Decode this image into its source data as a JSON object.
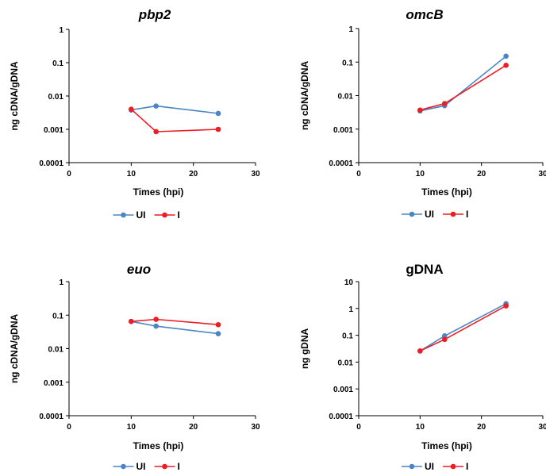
{
  "chart_data": [
    {
      "type": "line",
      "title": "pbp2",
      "title_italic": true,
      "xlabel": "Times (hpi)",
      "ylabel": "ng cDNA/gDNA",
      "yscale": "log",
      "ylim": [
        0.0001,
        1
      ],
      "xlim": [
        0,
        30
      ],
      "yticks": [
        "0.0001",
        "0.001",
        "0.01",
        "0.1",
        "1"
      ],
      "xticks": [
        "0",
        "10",
        "20",
        "30"
      ],
      "grid": false,
      "legend": "bottom",
      "series": [
        {
          "name": "UI",
          "color": "#4a86c5",
          "x": [
            10,
            14,
            24
          ],
          "y": [
            0.0038,
            0.005,
            0.003
          ]
        },
        {
          "name": "I",
          "color": "#ee1c24",
          "x": [
            10,
            14,
            24
          ],
          "y": [
            0.004,
            0.00085,
            0.001
          ]
        }
      ]
    },
    {
      "type": "line",
      "title": "omcB",
      "title_italic": true,
      "xlabel": "Times (hpi)",
      "ylabel": "ng cDNA/gDNA",
      "yscale": "log",
      "ylim": [
        0.0001,
        1
      ],
      "xlim": [
        0,
        30
      ],
      "yticks": [
        "0.0001",
        "0.001",
        "0.01",
        "0.1",
        "1"
      ],
      "xticks": [
        "0",
        "10",
        "20",
        "30"
      ],
      "grid": false,
      "legend": "bottom",
      "series": [
        {
          "name": "UI",
          "color": "#4a86c5",
          "x": [
            10,
            14,
            24
          ],
          "y": [
            0.0035,
            0.005,
            0.15
          ]
        },
        {
          "name": "I",
          "color": "#ee1c24",
          "x": [
            10,
            14,
            24
          ],
          "y": [
            0.0037,
            0.0058,
            0.08
          ]
        }
      ]
    },
    {
      "type": "line",
      "title": "euo",
      "title_italic": true,
      "xlabel": "Times (hpi)",
      "ylabel": "ng cDNA/gDNA",
      "yscale": "log",
      "ylim": [
        0.0001,
        1
      ],
      "xlim": [
        0,
        30
      ],
      "yticks": [
        "0.0001",
        "0.001",
        "0.01",
        "0.1",
        "1"
      ],
      "xticks": [
        "0",
        "10",
        "20",
        "30"
      ],
      "grid": false,
      "legend": "bottom",
      "series": [
        {
          "name": "UI",
          "color": "#4a86c5",
          "x": [
            10,
            14,
            24
          ],
          "y": [
            0.065,
            0.047,
            0.028
          ]
        },
        {
          "name": "I",
          "color": "#ee1c24",
          "x": [
            10,
            14,
            24
          ],
          "y": [
            0.065,
            0.075,
            0.052
          ]
        }
      ]
    },
    {
      "type": "line",
      "title": "gDNA",
      "title_italic": false,
      "xlabel": "Times (hpi)",
      "ylabel": "ng gDNA",
      "yscale": "log",
      "ylim": [
        0.0001,
        10
      ],
      "xlim": [
        0,
        30
      ],
      "yticks": [
        "0.0001",
        "0.001",
        "0.01",
        "0.1",
        "1",
        "10"
      ],
      "xticks": [
        "0",
        "10",
        "20",
        "30"
      ],
      "grid": false,
      "legend": "bottom",
      "series": [
        {
          "name": "UI",
          "color": "#4a86c5",
          "x": [
            10,
            14,
            24
          ],
          "y": [
            0.026,
            0.095,
            1.5
          ]
        },
        {
          "name": "I",
          "color": "#ee1c24",
          "x": [
            10,
            14,
            24
          ],
          "y": [
            0.026,
            0.07,
            1.25
          ]
        }
      ]
    }
  ]
}
